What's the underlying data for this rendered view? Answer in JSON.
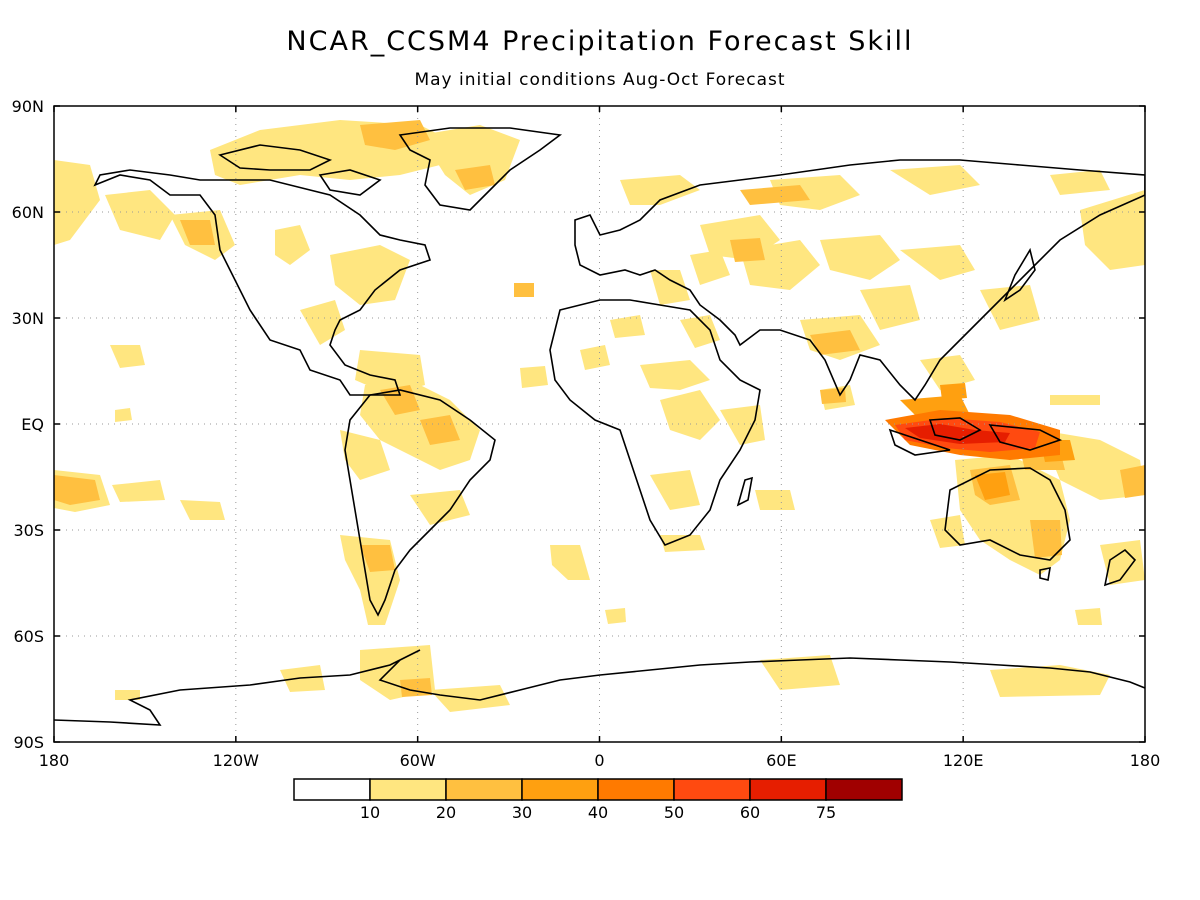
{
  "title": "NCAR_CCSM4 Precipitation Forecast Skill",
  "subtitle": "May initial conditions  Aug-Oct Forecast",
  "y_ticks": [
    {
      "lat": 90,
      "label": "90N"
    },
    {
      "lat": 60,
      "label": "60N"
    },
    {
      "lat": 30,
      "label": "30N"
    },
    {
      "lat": 0,
      "label": "EQ"
    },
    {
      "lat": -30,
      "label": "30S"
    },
    {
      "lat": -60,
      "label": "60S"
    },
    {
      "lat": -90,
      "label": "90S"
    }
  ],
  "x_ticks": [
    {
      "lon": -180,
      "label": "180"
    },
    {
      "lon": -120,
      "label": "120W"
    },
    {
      "lon": -60,
      "label": "60W"
    },
    {
      "lon": 0,
      "label": "0"
    },
    {
      "lon": 60,
      "label": "60E"
    },
    {
      "lon": 120,
      "label": "120E"
    },
    {
      "lon": 180,
      "label": "180"
    }
  ],
  "colorbar": {
    "levels": [
      "10",
      "20",
      "30",
      "40",
      "50",
      "60",
      "75"
    ],
    "colors": [
      "#ffffff",
      "#ffe680",
      "#ffc040",
      "#ffa010",
      "#ff7a00",
      "#ff4a10",
      "#e61e00",
      "#a00000"
    ]
  }
}
